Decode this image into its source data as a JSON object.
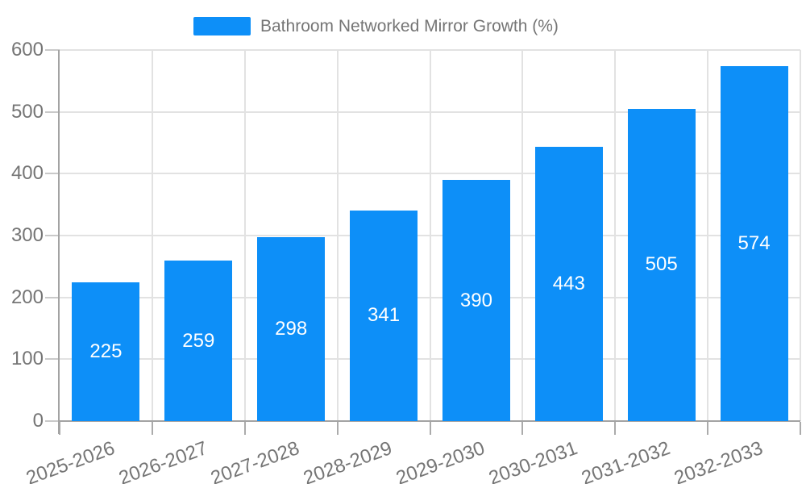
{
  "legend": {
    "label": "Bathroom Networked Mirror Growth (%)"
  },
  "chart_data": {
    "type": "bar",
    "title": "",
    "series_name": "Bathroom Networked Mirror Growth (%)",
    "categories": [
      "2025-2026",
      "2026-2027",
      "2027-2028",
      "2028-2029",
      "2029-2030",
      "2030-2031",
      "2031-2032",
      "2032-2033"
    ],
    "values": [
      225,
      259,
      298,
      341,
      390,
      443,
      505,
      574
    ],
    "bar_value_labels": [
      "225",
      "259",
      "298",
      "341",
      "390",
      "443",
      "505",
      "574"
    ],
    "xlabel": "",
    "ylabel": "",
    "ylim": [
      0,
      600
    ],
    "yticks": [
      0,
      100,
      200,
      300,
      400,
      500,
      600
    ],
    "grid": true,
    "legend_position": "top-center",
    "x_tick_rotation_deg": -20,
    "colors": {
      "bar": "#0D8FF8",
      "bar_label": "#FFFFFF",
      "axis_line": "#A3A3A3",
      "tick": "#ABABAB",
      "gridline": "#E2E2E2",
      "tick_label": "#757575",
      "legend_text": "#757575",
      "background": "#FFFFFF"
    }
  }
}
